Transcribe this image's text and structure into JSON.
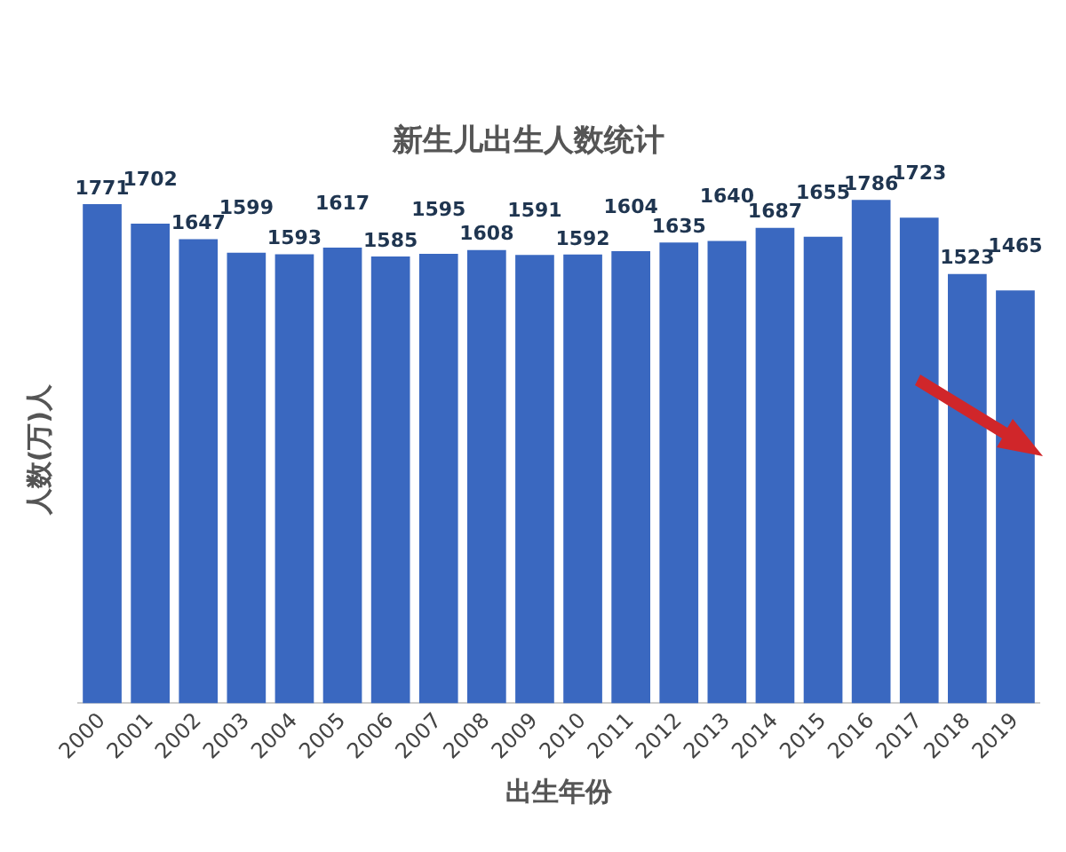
{
  "chart_data": {
    "type": "bar",
    "title": "新生儿出生人数统计",
    "xlabel": "出生年份",
    "ylabel": "人数(万)人",
    "categories": [
      "2000",
      "2001",
      "2002",
      "2003",
      "2004",
      "2005",
      "2006",
      "2007",
      "2008",
      "2009",
      "2010",
      "2011",
      "2012",
      "2013",
      "2014",
      "2015",
      "2016",
      "2017",
      "2018",
      "2019"
    ],
    "values": [
      1771,
      1702,
      1647,
      1599,
      1593,
      1617,
      1585,
      1595,
      1608,
      1591,
      1592,
      1604,
      1635,
      1640,
      1687,
      1655,
      1786,
      1723,
      1523,
      1465
    ],
    "color": "#3a68c0",
    "tick_labels": "x",
    "data_labels": true,
    "grid": false,
    "legend": false
  }
}
